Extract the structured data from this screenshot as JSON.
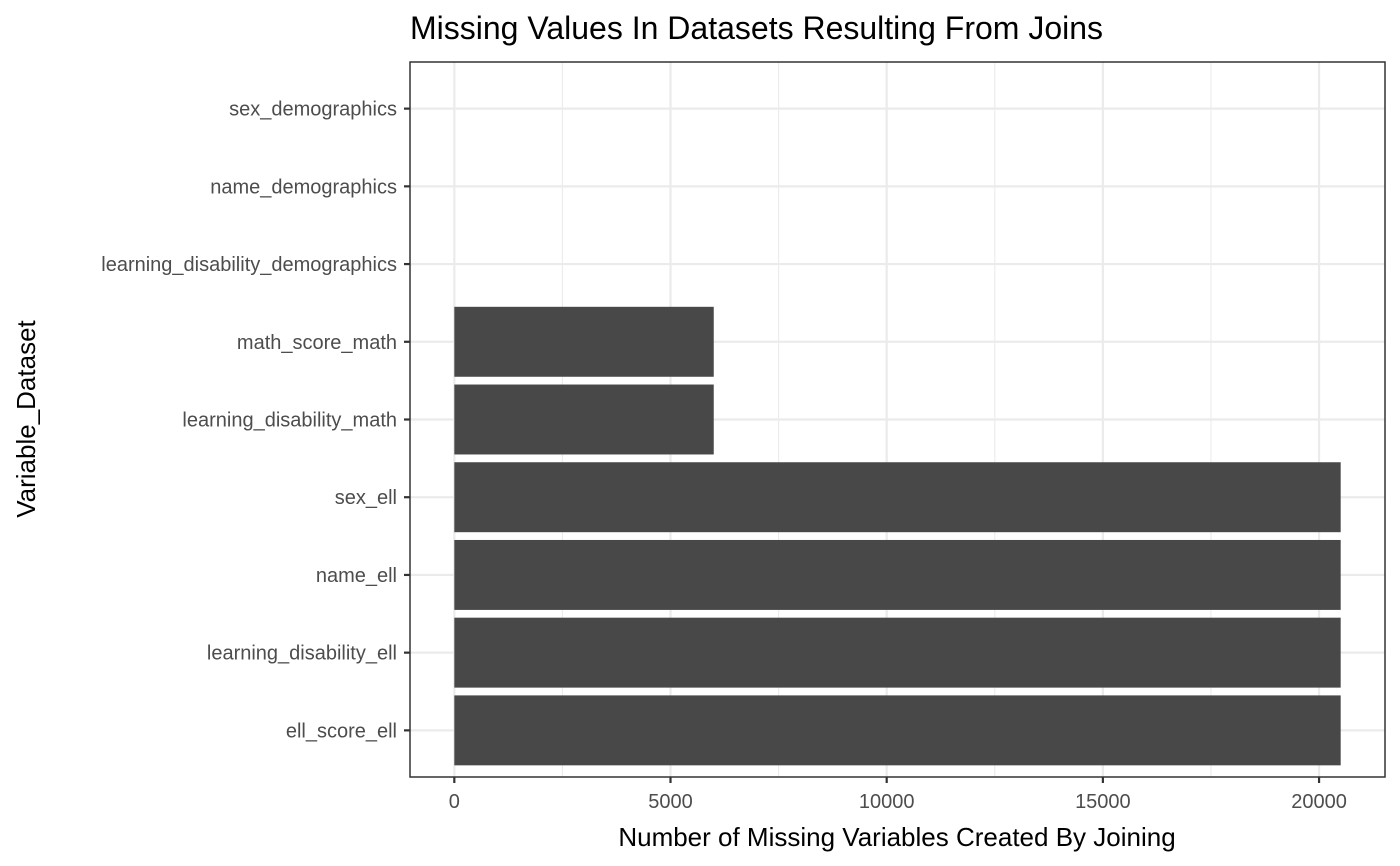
{
  "chart_data": {
    "type": "bar",
    "orientation": "horizontal",
    "title": "Missing Values In Datasets Resulting From Joins",
    "xlabel": "Number of Missing Variables Created By Joining",
    "ylabel": "Variable_Dataset",
    "categories": [
      "ell_score_ell",
      "learning_disability_ell",
      "name_ell",
      "sex_ell",
      "learning_disability_math",
      "math_score_math",
      "learning_disability_demographics",
      "name_demographics",
      "sex_demographics"
    ],
    "values": [
      20500,
      20500,
      20500,
      20500,
      6000,
      6000,
      0,
      0,
      0
    ],
    "xlim": [
      -1025,
      21525
    ],
    "xticks": [
      0,
      5000,
      10000,
      15000,
      20000
    ],
    "xtick_labels": [
      "0",
      "5000",
      "10000",
      "15000",
      "20000"
    ],
    "grid": true,
    "bar_color": "#484848",
    "theme": "bw"
  }
}
